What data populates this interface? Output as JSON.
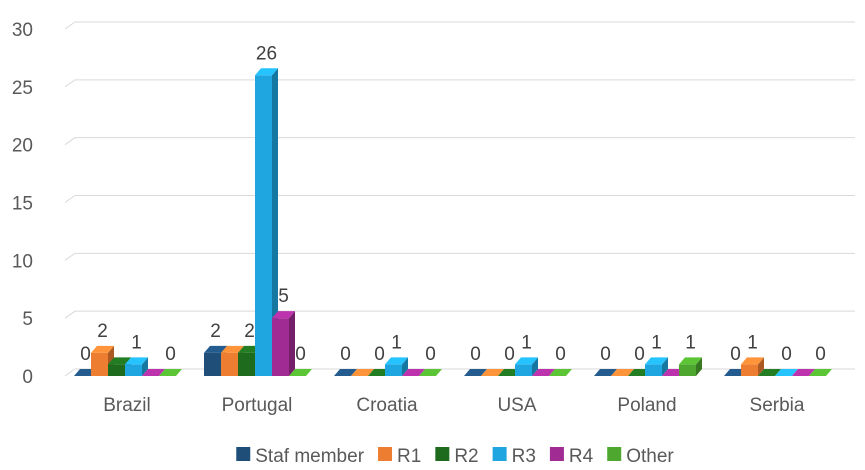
{
  "chart_data": {
    "type": "bar",
    "title": "",
    "xlabel": "",
    "ylabel": "",
    "ylim": [
      0,
      30
    ],
    "yticks": [
      0,
      5,
      10,
      15,
      20,
      25,
      30
    ],
    "grid": true,
    "legend_position": "bottom",
    "categories": [
      "Brazil",
      "Portugal",
      "Croatia",
      "USA",
      "Poland",
      "Serbia"
    ],
    "series": [
      {
        "name": "Staf member",
        "color": "#1f4e79",
        "values": [
          0,
          2,
          0,
          0,
          0,
          0
        ]
      },
      {
        "name": "R1",
        "color": "#ed7d31",
        "values": [
          2,
          2,
          0,
          0,
          0,
          1
        ]
      },
      {
        "name": "R2",
        "color": "#1e6b1e",
        "values": [
          1,
          2,
          0,
          0,
          0,
          0
        ]
      },
      {
        "name": "R3",
        "color": "#1fa5e0",
        "values": [
          1,
          26,
          1,
          1,
          1,
          0
        ]
      },
      {
        "name": "R4",
        "color": "#a02b93",
        "values": [
          0,
          5,
          0,
          0,
          0,
          0
        ]
      },
      {
        "name": "Other",
        "color": "#4ea72e",
        "values": [
          0,
          0,
          0,
          0,
          1,
          0
        ]
      }
    ],
    "data_labels": [
      {
        "category": "Brazil",
        "series": "Staf member",
        "text": "0"
      },
      {
        "category": "Brazil",
        "series": "R1",
        "text": "2"
      },
      {
        "category": "Brazil",
        "series": "R3",
        "text": "1"
      },
      {
        "category": "Brazil",
        "series": "Other",
        "text": "0"
      },
      {
        "category": "Portugal",
        "series": "Staf member",
        "text": "2"
      },
      {
        "category": "Portugal",
        "series": "R2",
        "text": "2"
      },
      {
        "category": "Portugal",
        "series": "R3",
        "text": "26"
      },
      {
        "category": "Portugal",
        "series": "R4",
        "text": "5"
      },
      {
        "category": "Portugal",
        "series": "Other",
        "text": "0"
      },
      {
        "category": "Croatia",
        "series": "Staf member",
        "text": "0"
      },
      {
        "category": "Croatia",
        "series": "R2",
        "text": "0"
      },
      {
        "category": "Croatia",
        "series": "R3",
        "text": "1"
      },
      {
        "category": "Croatia",
        "series": "Other",
        "text": "0"
      },
      {
        "category": "USA",
        "series": "Staf member",
        "text": "0"
      },
      {
        "category": "USA",
        "series": "R2",
        "text": "0"
      },
      {
        "category": "USA",
        "series": "R3",
        "text": "1"
      },
      {
        "category": "USA",
        "series": "Other",
        "text": "0"
      },
      {
        "category": "Poland",
        "series": "Staf member",
        "text": "0"
      },
      {
        "category": "Poland",
        "series": "R2",
        "text": "0"
      },
      {
        "category": "Poland",
        "series": "R3",
        "text": "1"
      },
      {
        "category": "Poland",
        "series": "Other",
        "text": "1"
      },
      {
        "category": "Serbia",
        "series": "Staf member",
        "text": "0"
      },
      {
        "category": "Serbia",
        "series": "R1",
        "text": "1"
      },
      {
        "category": "Serbia",
        "series": "R3",
        "text": "0"
      },
      {
        "category": "Serbia",
        "series": "Other",
        "text": "0"
      }
    ]
  }
}
